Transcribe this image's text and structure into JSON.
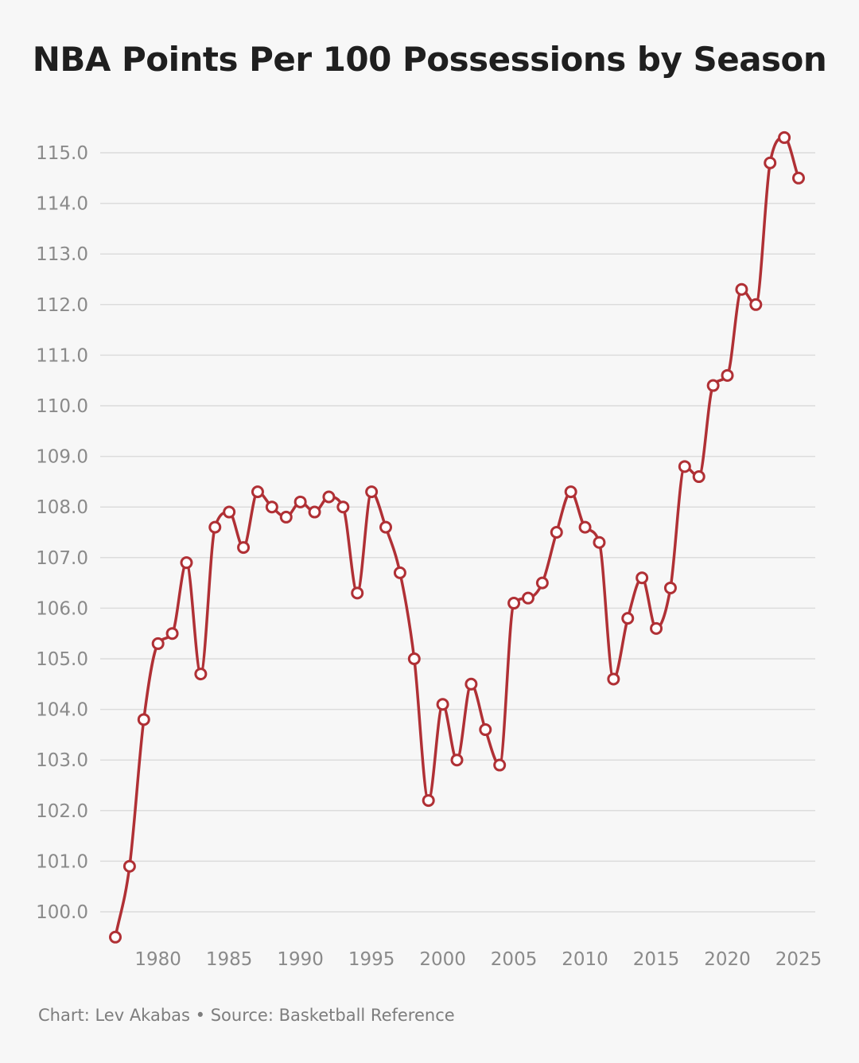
{
  "title": "NBA Points Per 100 Possessions by Season",
  "footer": "Chart: Lev Akabas • Source: Basketball Reference",
  "colors": {
    "background": "#f7f7f7",
    "line": "#b03035",
    "marker_fill": "#ffffff",
    "gridline": "#dcdcdc",
    "tick_text": "#8a8a8a",
    "title_text": "#1f1f1f"
  },
  "chart_data": {
    "type": "line",
    "title": "NBA Points Per 100 Possessions by Season",
    "xlabel": "",
    "ylabel": "",
    "xlim": [
      1977,
      2025
    ],
    "ylim": [
      99.5,
      115.3
    ],
    "grid": true,
    "x_ticks": [
      1980,
      1985,
      1990,
      1995,
      2000,
      2005,
      2010,
      2015,
      2020,
      2025
    ],
    "x_tick_labels": [
      "1980",
      "1985",
      "1990",
      "1995",
      "2000",
      "2005",
      "2010",
      "2015",
      "2020",
      "2025"
    ],
    "y_ticks": [
      100,
      101,
      102,
      103,
      104,
      105,
      106,
      107,
      108,
      109,
      110,
      111,
      112,
      113,
      114,
      115
    ],
    "y_tick_labels": [
      "100.0",
      "101.0",
      "102.0",
      "103.0",
      "104.0",
      "105.0",
      "106.0",
      "107.0",
      "108.0",
      "109.0",
      "110.0",
      "111.0",
      "112.0",
      "113.0",
      "114.0",
      "115.0"
    ],
    "series": [
      {
        "x": [
          1977,
          1978,
          1979,
          1980,
          1981,
          1982,
          1983,
          1984,
          1985,
          1986,
          1987,
          1988,
          1989,
          1990,
          1991,
          1992,
          1993,
          1994,
          1995,
          1996,
          1997,
          1998,
          1999,
          2000,
          2001,
          2002,
          2003,
          2004,
          2005,
          2006,
          2007,
          2008,
          2009,
          2010,
          2011,
          2012,
          2013,
          2014,
          2015,
          2016,
          2017,
          2018,
          2019,
          2020,
          2021,
          2022,
          2023,
          2024,
          2025
        ],
        "values": [
          99.5,
          100.9,
          103.8,
          105.3,
          105.5,
          106.9,
          104.7,
          107.6,
          107.9,
          107.2,
          108.3,
          108.0,
          107.8,
          108.1,
          107.9,
          108.2,
          108.0,
          106.3,
          108.3,
          107.6,
          106.7,
          105.0,
          102.2,
          104.1,
          103.0,
          104.5,
          103.6,
          102.9,
          106.1,
          106.2,
          106.5,
          107.5,
          108.3,
          107.6,
          107.3,
          104.6,
          105.8,
          106.6,
          105.6,
          106.4,
          108.8,
          108.6,
          110.4,
          110.6,
          112.3,
          112.0,
          114.8,
          115.3,
          114.5
        ]
      }
    ]
  }
}
